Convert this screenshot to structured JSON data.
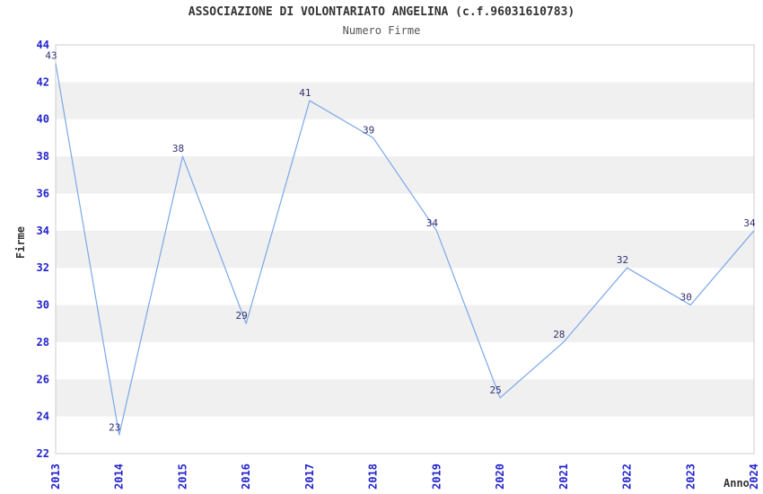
{
  "chart_data": {
    "type": "line",
    "title": "ASSOCIAZIONE DI VOLONTARIATO ANGELINA (c.f.96031610783)",
    "subtitle": "Numero Firme",
    "xlabel": "Anno",
    "ylabel": "Firme",
    "categories": [
      "2013",
      "2014",
      "2015",
      "2016",
      "2017",
      "2018",
      "2019",
      "2020",
      "2021",
      "2022",
      "2023",
      "2024"
    ],
    "values": [
      43,
      23,
      38,
      29,
      41,
      39,
      34,
      25,
      28,
      32,
      30,
      34
    ],
    "ylim": [
      22,
      44
    ],
    "yticks": [
      22,
      24,
      26,
      28,
      30,
      32,
      34,
      36,
      38,
      40,
      42,
      44
    ],
    "grid": "alternating horizontal bands",
    "legend": "none",
    "colors": {
      "line": "#7aa8e8",
      "band_gray": "#f0f0f0",
      "band_white": "#ffffff",
      "plot_border": "#cccccc",
      "tick_label": "#2323cc",
      "point_label": "#303070",
      "title": "#333333",
      "subtitle": "#555555",
      "axis_title": "#333333"
    }
  }
}
